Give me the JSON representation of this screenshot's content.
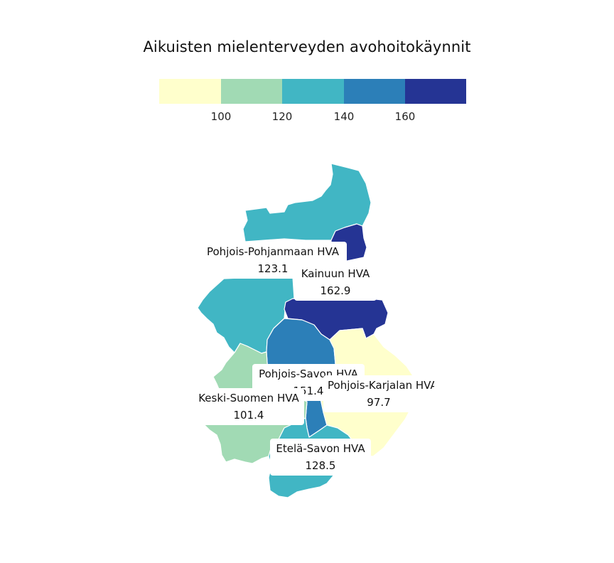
{
  "title": "Aikuisten mielenterveyden avohoitokäynnit",
  "legend": {
    "bins": [
      {
        "color": "#ffffcc"
      },
      {
        "color": "#a1dab4"
      },
      {
        "color": "#41b6c4"
      },
      {
        "color": "#2c7fb8"
      },
      {
        "color": "#253494"
      }
    ],
    "ticks": [
      "100",
      "120",
      "140",
      "160"
    ]
  },
  "regions": [
    {
      "name": "Pohjois-Pohjanmaan HVA",
      "value": "123.1",
      "color": "#41b6c4"
    },
    {
      "name": "Kainuun HVA",
      "value": "162.9",
      "color": "#253494"
    },
    {
      "name": "Pohjois-Savon HVA",
      "value": "151.4",
      "color": "#2c7fb8"
    },
    {
      "name": "Pohjois-Karjalan HVA",
      "value": "97.7",
      "color": "#ffffcc"
    },
    {
      "name": "Keski-Suomen HVA",
      "value": "101.4",
      "color": "#a1dab4"
    },
    {
      "name": "Etelä-Savon HVA",
      "value": "128.5",
      "color": "#41b6c4"
    }
  ]
}
